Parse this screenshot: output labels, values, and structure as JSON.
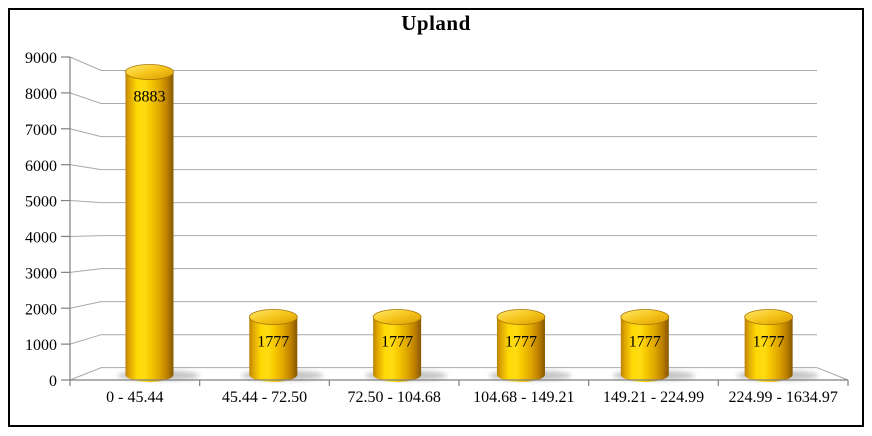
{
  "window": {
    "background": "#ffffff",
    "border_color": "#000000"
  },
  "chart_data": {
    "type": "bar",
    "subtype": "3d-cylinder",
    "title": "Upland",
    "categories": [
      "0 - 45.44",
      "45.44 - 72.50",
      "72.50 - 104.68",
      "104.68 - 149.21",
      "149.21 - 224.99",
      "224.99 - 1634.97"
    ],
    "values": [
      8883,
      1777,
      1777,
      1777,
      1777,
      1777
    ],
    "data_labels": [
      "8883",
      "1777",
      "1777",
      "1777",
      "1777",
      "1777"
    ],
    "xlabel": "",
    "ylabel": "",
    "ylim": [
      0,
      9000
    ],
    "ytick_step": 1000,
    "ytick_labels": [
      "0",
      "1000",
      "2000",
      "3000",
      "4000",
      "5000",
      "6000",
      "7000",
      "8000",
      "9000"
    ],
    "grid": true,
    "legend_position": "none",
    "colors": {
      "gridline": "#a9a9a9",
      "axis": "#808080",
      "text": "#000000",
      "bar_left_edge": "#bd8106",
      "bar_highlight": "#ffd806",
      "bar_mid": "#f7c900",
      "bar_right_edge": "#845701",
      "cap_light": "#ffe96e",
      "cap_mid": "#f6c51b",
      "cap_dark": "#d99c00",
      "cap_stroke": "#a87400",
      "shadow": "#8a8a8a"
    }
  }
}
